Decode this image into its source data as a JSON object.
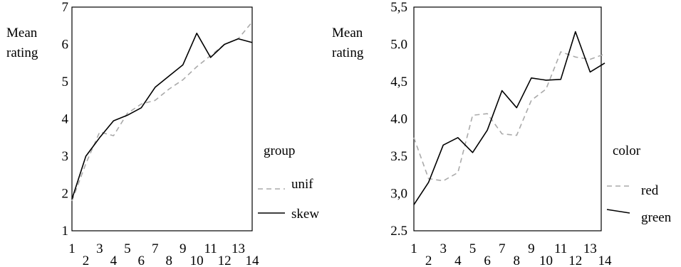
{
  "chart_data": [
    {
      "type": "line",
      "ylabel_lines": [
        "Mean",
        "rating"
      ],
      "xlabel": "",
      "x": [
        1,
        2,
        3,
        4,
        5,
        6,
        7,
        8,
        9,
        10,
        11,
        12,
        13,
        14
      ],
      "x_tick_labels": [
        "1",
        "2",
        "3",
        "4",
        "5",
        "6",
        "7",
        "8",
        "9",
        "10",
        "11",
        "12",
        "13",
        "14"
      ],
      "y_tick_labels": [
        "1",
        "2",
        "3",
        "4",
        "5",
        "6",
        "7"
      ],
      "y_ticks": [
        1,
        2,
        3,
        4,
        5,
        6,
        7
      ],
      "ylim": [
        1,
        7
      ],
      "legend_title": "group",
      "legend_position": "right",
      "series": [
        {
          "name": "unif",
          "style": "dashed",
          "color": "#aaaaaa",
          "values": [
            1.8,
            2.8,
            3.65,
            3.55,
            4.15,
            4.4,
            4.5,
            4.8,
            5.05,
            5.4,
            5.7,
            6.0,
            6.15,
            6.6
          ]
        },
        {
          "name": "skew",
          "style": "solid",
          "color": "#000000",
          "values": [
            1.85,
            3.0,
            3.5,
            3.95,
            4.1,
            4.3,
            4.85,
            5.15,
            5.45,
            6.3,
            5.65,
            6.0,
            6.15,
            6.05
          ]
        }
      ]
    },
    {
      "type": "line",
      "ylabel_lines": [
        "Mean",
        "rating"
      ],
      "xlabel": "",
      "x": [
        1,
        2,
        3,
        4,
        5,
        6,
        7,
        8,
        9,
        10,
        11,
        12,
        13,
        14
      ],
      "x_tick_labels": [
        "1",
        "2",
        "3",
        "4",
        "5",
        "6",
        "7",
        "8",
        "9",
        "10",
        "11",
        "12",
        "13",
        "14"
      ],
      "y_tick_labels": [
        "2.5",
        "3,0",
        "3.5",
        "4.0",
        "4,5",
        "5.0",
        "5,5"
      ],
      "y_ticks": [
        2.5,
        3.0,
        3.5,
        4.0,
        4.5,
        5.0,
        5.5
      ],
      "ylim": [
        2.5,
        5.5
      ],
      "legend_title": "color",
      "legend_position": "right",
      "series": [
        {
          "name": "red",
          "style": "dashed",
          "color": "#aaaaaa",
          "values": [
            3.75,
            3.2,
            3.17,
            3.28,
            4.05,
            4.07,
            3.8,
            3.78,
            4.25,
            4.4,
            4.9,
            4.83,
            4.8,
            4.87
          ]
        },
        {
          "name": "green",
          "style": "solid",
          "color": "#000000",
          "values": [
            2.85,
            3.15,
            3.65,
            3.75,
            3.55,
            3.85,
            4.38,
            4.15,
            4.55,
            4.52,
            4.53,
            5.17,
            4.63,
            4.75
          ]
        }
      ]
    }
  ]
}
